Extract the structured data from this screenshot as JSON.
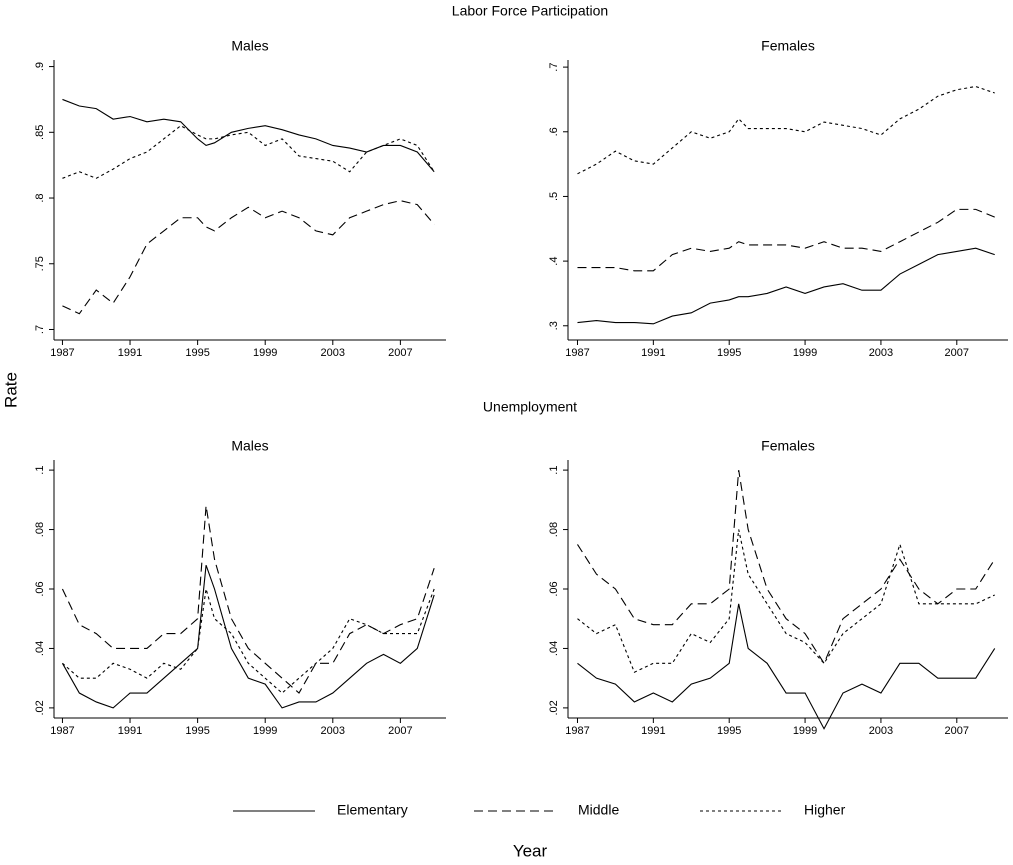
{
  "title_top": "Labor Force Participation",
  "title_bottom": "Unemployment",
  "y_label": "Rate",
  "x_label": "Year",
  "chart_data": [
    {
      "type": "line",
      "title": "Males",
      "x": [
        1987,
        1988,
        1989,
        1990,
        1991,
        1992,
        1993,
        1994,
        1995,
        1995.5,
        1996,
        1997,
        1998,
        1999,
        2000,
        2001,
        2002,
        2003,
        2004,
        2005,
        2006,
        2007,
        2008,
        2009
      ],
      "xlim": [
        1986.5,
        2009.7
      ],
      "xticks": [
        1987,
        1991,
        1995,
        1999,
        2003,
        2007
      ],
      "ylim": [
        0.692,
        0.905
      ],
      "yticks": [
        {
          "value": 0.7,
          "label": ".7"
        },
        {
          "value": 0.75,
          "label": ".75"
        },
        {
          "value": 0.8,
          "label": ".8"
        },
        {
          "value": 0.85,
          "label": ".85"
        },
        {
          "value": 0.9,
          "label": ".9"
        }
      ],
      "series": [
        {
          "name": "Elementary",
          "color": "#000000",
          "line_style": "solid",
          "values": [
            0.875,
            0.87,
            0.868,
            0.86,
            0.862,
            0.858,
            0.86,
            0.858,
            0.845,
            0.84,
            0.842,
            0.85,
            0.853,
            0.855,
            0.852,
            0.848,
            0.845,
            0.84,
            0.838,
            0.835,
            0.84,
            0.84,
            0.835,
            0.82
          ]
        },
        {
          "name": "Middle",
          "color": "#000000",
          "line_style": "dashed",
          "values": [
            0.718,
            0.712,
            0.73,
            0.72,
            0.74,
            0.765,
            0.775,
            0.785,
            0.785,
            0.778,
            0.775,
            0.785,
            0.793,
            0.785,
            0.79,
            0.785,
            0.775,
            0.772,
            0.785,
            0.79,
            0.795,
            0.798,
            0.795,
            0.78
          ]
        },
        {
          "name": "Higher",
          "color": "#000000",
          "line_style": "dotted",
          "values": [
            0.815,
            0.82,
            0.815,
            0.822,
            0.83,
            0.835,
            0.845,
            0.855,
            0.848,
            0.845,
            0.845,
            0.848,
            0.85,
            0.84,
            0.845,
            0.832,
            0.83,
            0.828,
            0.82,
            0.835,
            0.84,
            0.845,
            0.84,
            0.82
          ]
        }
      ]
    },
    {
      "type": "line",
      "title": "Females",
      "x": [
        1987,
        1988,
        1989,
        1990,
        1991,
        1992,
        1993,
        1994,
        1995,
        1995.5,
        1996,
        1997,
        1998,
        1999,
        2000,
        2001,
        2002,
        2003,
        2004,
        2005,
        2006,
        2007,
        2008,
        2009
      ],
      "xlim": [
        1986.5,
        2009.7
      ],
      "xticks": [
        1987,
        1991,
        1995,
        1999,
        2003,
        2007
      ],
      "ylim": [
        0.278,
        0.711
      ],
      "yticks": [
        {
          "value": 0.3,
          "label": ".3"
        },
        {
          "value": 0.4,
          "label": ".4"
        },
        {
          "value": 0.5,
          "label": ".5"
        },
        {
          "value": 0.6,
          "label": ".6"
        },
        {
          "value": 0.7,
          "label": ".7"
        }
      ],
      "series": [
        {
          "name": "Elementary",
          "color": "#000000",
          "line_style": "solid",
          "values": [
            0.305,
            0.308,
            0.305,
            0.305,
            0.303,
            0.315,
            0.32,
            0.335,
            0.34,
            0.345,
            0.345,
            0.35,
            0.36,
            0.35,
            0.36,
            0.365,
            0.355,
            0.355,
            0.38,
            0.395,
            0.41,
            0.415,
            0.42,
            0.41
          ]
        },
        {
          "name": "Middle",
          "color": "#000000",
          "line_style": "dashed",
          "values": [
            0.39,
            0.39,
            0.39,
            0.385,
            0.385,
            0.41,
            0.42,
            0.415,
            0.42,
            0.43,
            0.425,
            0.425,
            0.425,
            0.42,
            0.43,
            0.42,
            0.42,
            0.415,
            0.43,
            0.445,
            0.46,
            0.48,
            0.48,
            0.468
          ]
        },
        {
          "name": "Higher",
          "color": "#000000",
          "line_style": "dotted",
          "values": [
            0.535,
            0.55,
            0.57,
            0.555,
            0.55,
            0.575,
            0.6,
            0.59,
            0.6,
            0.62,
            0.605,
            0.605,
            0.605,
            0.6,
            0.615,
            0.61,
            0.605,
            0.595,
            0.62,
            0.635,
            0.655,
            0.665,
            0.67,
            0.66
          ]
        }
      ]
    },
    {
      "type": "line",
      "title": "Males",
      "x": [
        1987,
        1988,
        1989,
        1990,
        1991,
        1992,
        1993,
        1994,
        1995,
        1995.5,
        1996,
        1997,
        1998,
        1999,
        2000,
        2001,
        2002,
        2003,
        2004,
        2005,
        2006,
        2007,
        2008,
        2009
      ],
      "xlim": [
        1986.5,
        2009.7
      ],
      "xticks": [
        1987,
        1991,
        1995,
        1999,
        2003,
        2007
      ],
      "ylim": [
        0.0166,
        0.1034
      ],
      "yticks": [
        {
          "value": 0.02,
          "label": ".02"
        },
        {
          "value": 0.04,
          "label": ".04"
        },
        {
          "value": 0.06,
          "label": ".06"
        },
        {
          "value": 0.08,
          "label": ".08"
        },
        {
          "value": 0.1,
          "label": ".1"
        }
      ],
      "series": [
        {
          "name": "Elementary",
          "color": "#000000",
          "line_style": "solid",
          "values": [
            0.035,
            0.025,
            0.022,
            0.02,
            0.025,
            0.025,
            0.03,
            0.035,
            0.04,
            0.068,
            0.06,
            0.04,
            0.03,
            0.028,
            0.02,
            0.022,
            0.022,
            0.025,
            0.03,
            0.035,
            0.038,
            0.035,
            0.04,
            0.058
          ]
        },
        {
          "name": "Middle",
          "color": "#000000",
          "line_style": "dashed",
          "values": [
            0.06,
            0.048,
            0.045,
            0.04,
            0.04,
            0.04,
            0.045,
            0.045,
            0.05,
            0.088,
            0.07,
            0.05,
            0.04,
            0.035,
            0.03,
            0.025,
            0.035,
            0.035,
            0.045,
            0.048,
            0.045,
            0.048,
            0.05,
            0.067
          ]
        },
        {
          "name": "Higher",
          "color": "#000000",
          "line_style": "dotted",
          "values": [
            0.035,
            0.03,
            0.03,
            0.035,
            0.033,
            0.03,
            0.035,
            0.033,
            0.04,
            0.06,
            0.05,
            0.045,
            0.035,
            0.03,
            0.025,
            0.03,
            0.035,
            0.04,
            0.05,
            0.048,
            0.045,
            0.045,
            0.045,
            0.06
          ]
        }
      ]
    },
    {
      "type": "line",
      "title": "Females",
      "x": [
        1987,
        1988,
        1989,
        1990,
        1991,
        1992,
        1993,
        1994,
        1995,
        1995.5,
        1996,
        1997,
        1998,
        1999,
        2000,
        2001,
        2002,
        2003,
        2004,
        2005,
        2006,
        2007,
        2008,
        2009
      ],
      "xlim": [
        1986.5,
        2009.7
      ],
      "xticks": [
        1987,
        1991,
        1995,
        1999,
        2003,
        2007
      ],
      "ylim": [
        0.0166,
        0.1034
      ],
      "yticks": [
        {
          "value": 0.02,
          "label": ".02"
        },
        {
          "value": 0.04,
          "label": ".04"
        },
        {
          "value": 0.06,
          "label": ".06"
        },
        {
          "value": 0.08,
          "label": ".08"
        },
        {
          "value": 0.1,
          "label": ".1"
        }
      ],
      "series": [
        {
          "name": "Elementary",
          "color": "#000000",
          "line_style": "solid",
          "values": [
            0.035,
            0.03,
            0.028,
            0.022,
            0.025,
            0.022,
            0.028,
            0.03,
            0.035,
            0.055,
            0.04,
            0.035,
            0.025,
            0.025,
            0.013,
            0.025,
            0.028,
            0.025,
            0.035,
            0.035,
            0.03,
            0.03,
            0.03,
            0.04
          ]
        },
        {
          "name": "Middle",
          "color": "#000000",
          "line_style": "dashed",
          "values": [
            0.075,
            0.065,
            0.06,
            0.05,
            0.048,
            0.048,
            0.055,
            0.055,
            0.06,
            0.1,
            0.08,
            0.06,
            0.05,
            0.045,
            0.035,
            0.05,
            0.055,
            0.06,
            0.07,
            0.06,
            0.055,
            0.06,
            0.06,
            0.07
          ]
        },
        {
          "name": "Higher",
          "color": "#000000",
          "line_style": "dotted",
          "values": [
            0.05,
            0.045,
            0.048,
            0.032,
            0.035,
            0.035,
            0.045,
            0.042,
            0.05,
            0.08,
            0.065,
            0.055,
            0.045,
            0.042,
            0.035,
            0.045,
            0.05,
            0.055,
            0.075,
            0.055,
            0.055,
            0.055,
            0.055,
            0.058
          ]
        }
      ]
    }
  ]
}
